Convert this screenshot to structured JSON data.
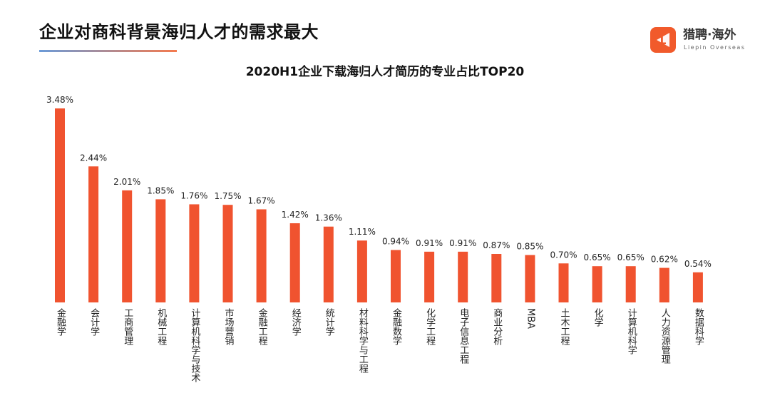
{
  "header": {
    "title": "企业对商科背景海归人才的需求最大"
  },
  "logo": {
    "name": "猎聘·海外",
    "subtitle": "Liepin Overseas"
  },
  "colors": {
    "bar": "#f0532f",
    "accent_line_start": "#6b9bd8",
    "accent_line_end": "#f47a4e",
    "logo": "#f15a2b"
  },
  "chart_data": {
    "type": "bar",
    "title": "2020H1企业下载海归人才简历的专业占比TOP20",
    "categories": [
      "金融学",
      "会计学",
      "工商管理",
      "机械工程",
      "计算机科学与技术",
      "市场营销",
      "金融工程",
      "经济学",
      "统计学",
      "材料科学与工程",
      "金融数学",
      "化学工程",
      "电子信息工程",
      "商业分析",
      "MBA",
      "土木工程",
      "化学",
      "计算机科学",
      "人力资源管理",
      "数据科学"
    ],
    "values": [
      3.48,
      2.44,
      2.01,
      1.85,
      1.76,
      1.75,
      1.67,
      1.42,
      1.36,
      1.11,
      0.94,
      0.91,
      0.91,
      0.87,
      0.85,
      0.7,
      0.65,
      0.65,
      0.62,
      0.54
    ],
    "labels": [
      "3.48%",
      "2.44%",
      "2.01%",
      "1.85%",
      "1.76%",
      "1.75%",
      "1.67%",
      "1.42%",
      "1.36%",
      "1.11%",
      "0.94%",
      "0.91%",
      "0.91%",
      "0.87%",
      "0.85%",
      "0.70%",
      "0.65%",
      "0.65%",
      "0.62%",
      "0.54%"
    ],
    "unit": "%",
    "grid": false,
    "legend": "none"
  }
}
